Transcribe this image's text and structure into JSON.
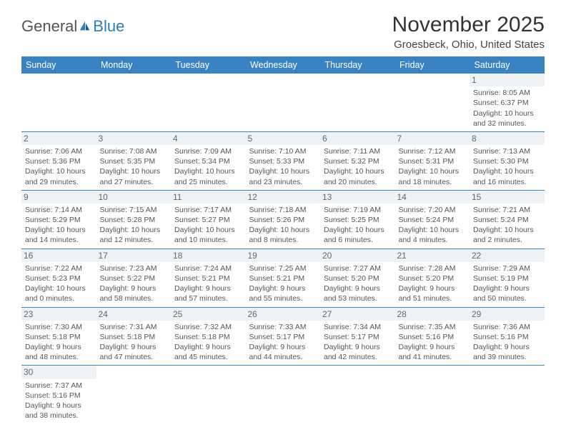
{
  "brand": {
    "general": "General",
    "blue": "Blue"
  },
  "title": "November 2025",
  "location": "Groesbeck, Ohio, United States",
  "theme": {
    "header_bg": "#3a83c3",
    "header_fg": "#ffffff",
    "daynum_bg": "#eef2f5",
    "daynum_fg": "#5a6b78",
    "border": "#3a83c3",
    "logo_blue": "#2b7fbc"
  },
  "weekdays": [
    "Sunday",
    "Monday",
    "Tuesday",
    "Wednesday",
    "Thursday",
    "Friday",
    "Saturday"
  ],
  "grid": [
    [
      null,
      null,
      null,
      null,
      null,
      null,
      {
        "n": "1",
        "sr": "Sunrise: 8:05 AM",
        "ss": "Sunset: 6:37 PM",
        "dl": "Daylight: 10 hours and 32 minutes."
      }
    ],
    [
      {
        "n": "2",
        "sr": "Sunrise: 7:06 AM",
        "ss": "Sunset: 5:36 PM",
        "dl": "Daylight: 10 hours and 29 minutes."
      },
      {
        "n": "3",
        "sr": "Sunrise: 7:08 AM",
        "ss": "Sunset: 5:35 PM",
        "dl": "Daylight: 10 hours and 27 minutes."
      },
      {
        "n": "4",
        "sr": "Sunrise: 7:09 AM",
        "ss": "Sunset: 5:34 PM",
        "dl": "Daylight: 10 hours and 25 minutes."
      },
      {
        "n": "5",
        "sr": "Sunrise: 7:10 AM",
        "ss": "Sunset: 5:33 PM",
        "dl": "Daylight: 10 hours and 23 minutes."
      },
      {
        "n": "6",
        "sr": "Sunrise: 7:11 AM",
        "ss": "Sunset: 5:32 PM",
        "dl": "Daylight: 10 hours and 20 minutes."
      },
      {
        "n": "7",
        "sr": "Sunrise: 7:12 AM",
        "ss": "Sunset: 5:31 PM",
        "dl": "Daylight: 10 hours and 18 minutes."
      },
      {
        "n": "8",
        "sr": "Sunrise: 7:13 AM",
        "ss": "Sunset: 5:30 PM",
        "dl": "Daylight: 10 hours and 16 minutes."
      }
    ],
    [
      {
        "n": "9",
        "sr": "Sunrise: 7:14 AM",
        "ss": "Sunset: 5:29 PM",
        "dl": "Daylight: 10 hours and 14 minutes."
      },
      {
        "n": "10",
        "sr": "Sunrise: 7:15 AM",
        "ss": "Sunset: 5:28 PM",
        "dl": "Daylight: 10 hours and 12 minutes."
      },
      {
        "n": "11",
        "sr": "Sunrise: 7:17 AM",
        "ss": "Sunset: 5:27 PM",
        "dl": "Daylight: 10 hours and 10 minutes."
      },
      {
        "n": "12",
        "sr": "Sunrise: 7:18 AM",
        "ss": "Sunset: 5:26 PM",
        "dl": "Daylight: 10 hours and 8 minutes."
      },
      {
        "n": "13",
        "sr": "Sunrise: 7:19 AM",
        "ss": "Sunset: 5:25 PM",
        "dl": "Daylight: 10 hours and 6 minutes."
      },
      {
        "n": "14",
        "sr": "Sunrise: 7:20 AM",
        "ss": "Sunset: 5:24 PM",
        "dl": "Daylight: 10 hours and 4 minutes."
      },
      {
        "n": "15",
        "sr": "Sunrise: 7:21 AM",
        "ss": "Sunset: 5:24 PM",
        "dl": "Daylight: 10 hours and 2 minutes."
      }
    ],
    [
      {
        "n": "16",
        "sr": "Sunrise: 7:22 AM",
        "ss": "Sunset: 5:23 PM",
        "dl": "Daylight: 10 hours and 0 minutes."
      },
      {
        "n": "17",
        "sr": "Sunrise: 7:23 AM",
        "ss": "Sunset: 5:22 PM",
        "dl": "Daylight: 9 hours and 58 minutes."
      },
      {
        "n": "18",
        "sr": "Sunrise: 7:24 AM",
        "ss": "Sunset: 5:21 PM",
        "dl": "Daylight: 9 hours and 57 minutes."
      },
      {
        "n": "19",
        "sr": "Sunrise: 7:25 AM",
        "ss": "Sunset: 5:21 PM",
        "dl": "Daylight: 9 hours and 55 minutes."
      },
      {
        "n": "20",
        "sr": "Sunrise: 7:27 AM",
        "ss": "Sunset: 5:20 PM",
        "dl": "Daylight: 9 hours and 53 minutes."
      },
      {
        "n": "21",
        "sr": "Sunrise: 7:28 AM",
        "ss": "Sunset: 5:20 PM",
        "dl": "Daylight: 9 hours and 51 minutes."
      },
      {
        "n": "22",
        "sr": "Sunrise: 7:29 AM",
        "ss": "Sunset: 5:19 PM",
        "dl": "Daylight: 9 hours and 50 minutes."
      }
    ],
    [
      {
        "n": "23",
        "sr": "Sunrise: 7:30 AM",
        "ss": "Sunset: 5:18 PM",
        "dl": "Daylight: 9 hours and 48 minutes."
      },
      {
        "n": "24",
        "sr": "Sunrise: 7:31 AM",
        "ss": "Sunset: 5:18 PM",
        "dl": "Daylight: 9 hours and 47 minutes."
      },
      {
        "n": "25",
        "sr": "Sunrise: 7:32 AM",
        "ss": "Sunset: 5:18 PM",
        "dl": "Daylight: 9 hours and 45 minutes."
      },
      {
        "n": "26",
        "sr": "Sunrise: 7:33 AM",
        "ss": "Sunset: 5:17 PM",
        "dl": "Daylight: 9 hours and 44 minutes."
      },
      {
        "n": "27",
        "sr": "Sunrise: 7:34 AM",
        "ss": "Sunset: 5:17 PM",
        "dl": "Daylight: 9 hours and 42 minutes."
      },
      {
        "n": "28",
        "sr": "Sunrise: 7:35 AM",
        "ss": "Sunset: 5:16 PM",
        "dl": "Daylight: 9 hours and 41 minutes."
      },
      {
        "n": "29",
        "sr": "Sunrise: 7:36 AM",
        "ss": "Sunset: 5:16 PM",
        "dl": "Daylight: 9 hours and 39 minutes."
      }
    ],
    [
      {
        "n": "30",
        "sr": "Sunrise: 7:37 AM",
        "ss": "Sunset: 5:16 PM",
        "dl": "Daylight: 9 hours and 38 minutes."
      },
      null,
      null,
      null,
      null,
      null,
      null
    ]
  ]
}
